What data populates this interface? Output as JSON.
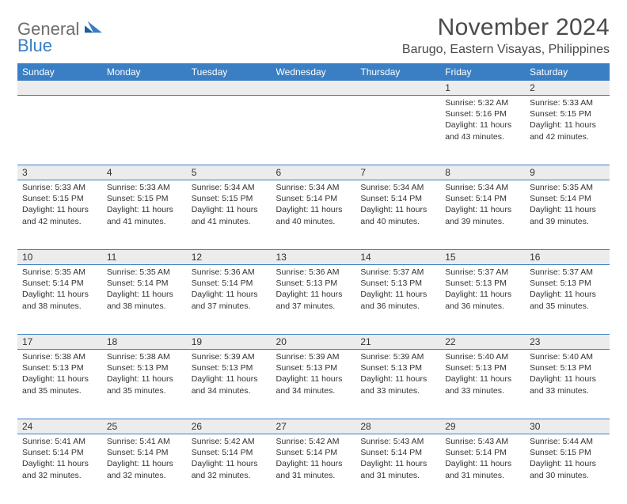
{
  "logo": {
    "general": "General",
    "blue": "Blue"
  },
  "title": "November 2024",
  "location": "Barugo, Eastern Visayas, Philippines",
  "colors": {
    "header_bg": "#3a7fc4",
    "header_text": "#ffffff",
    "daynum_bg": "#ececec",
    "border": "#3a7fc4",
    "text": "#333333",
    "logo_general": "#6d6d6d",
    "logo_blue": "#3a7fc4",
    "title_color": "#4a4a4a",
    "page_bg": "#ffffff"
  },
  "weekdays": [
    "Sunday",
    "Monday",
    "Tuesday",
    "Wednesday",
    "Thursday",
    "Friday",
    "Saturday"
  ],
  "weeks": [
    [
      null,
      null,
      null,
      null,
      null,
      {
        "n": "1",
        "sr": "5:32 AM",
        "ss": "5:16 PM",
        "dl": "11 hours and 43 minutes."
      },
      {
        "n": "2",
        "sr": "5:33 AM",
        "ss": "5:15 PM",
        "dl": "11 hours and 42 minutes."
      }
    ],
    [
      {
        "n": "3",
        "sr": "5:33 AM",
        "ss": "5:15 PM",
        "dl": "11 hours and 42 minutes."
      },
      {
        "n": "4",
        "sr": "5:33 AM",
        "ss": "5:15 PM",
        "dl": "11 hours and 41 minutes."
      },
      {
        "n": "5",
        "sr": "5:34 AM",
        "ss": "5:15 PM",
        "dl": "11 hours and 41 minutes."
      },
      {
        "n": "6",
        "sr": "5:34 AM",
        "ss": "5:14 PM",
        "dl": "11 hours and 40 minutes."
      },
      {
        "n": "7",
        "sr": "5:34 AM",
        "ss": "5:14 PM",
        "dl": "11 hours and 40 minutes."
      },
      {
        "n": "8",
        "sr": "5:34 AM",
        "ss": "5:14 PM",
        "dl": "11 hours and 39 minutes."
      },
      {
        "n": "9",
        "sr": "5:35 AM",
        "ss": "5:14 PM",
        "dl": "11 hours and 39 minutes."
      }
    ],
    [
      {
        "n": "10",
        "sr": "5:35 AM",
        "ss": "5:14 PM",
        "dl": "11 hours and 38 minutes."
      },
      {
        "n": "11",
        "sr": "5:35 AM",
        "ss": "5:14 PM",
        "dl": "11 hours and 38 minutes."
      },
      {
        "n": "12",
        "sr": "5:36 AM",
        "ss": "5:14 PM",
        "dl": "11 hours and 37 minutes."
      },
      {
        "n": "13",
        "sr": "5:36 AM",
        "ss": "5:13 PM",
        "dl": "11 hours and 37 minutes."
      },
      {
        "n": "14",
        "sr": "5:37 AM",
        "ss": "5:13 PM",
        "dl": "11 hours and 36 minutes."
      },
      {
        "n": "15",
        "sr": "5:37 AM",
        "ss": "5:13 PM",
        "dl": "11 hours and 36 minutes."
      },
      {
        "n": "16",
        "sr": "5:37 AM",
        "ss": "5:13 PM",
        "dl": "11 hours and 35 minutes."
      }
    ],
    [
      {
        "n": "17",
        "sr": "5:38 AM",
        "ss": "5:13 PM",
        "dl": "11 hours and 35 minutes."
      },
      {
        "n": "18",
        "sr": "5:38 AM",
        "ss": "5:13 PM",
        "dl": "11 hours and 35 minutes."
      },
      {
        "n": "19",
        "sr": "5:39 AM",
        "ss": "5:13 PM",
        "dl": "11 hours and 34 minutes."
      },
      {
        "n": "20",
        "sr": "5:39 AM",
        "ss": "5:13 PM",
        "dl": "11 hours and 34 minutes."
      },
      {
        "n": "21",
        "sr": "5:39 AM",
        "ss": "5:13 PM",
        "dl": "11 hours and 33 minutes."
      },
      {
        "n": "22",
        "sr": "5:40 AM",
        "ss": "5:13 PM",
        "dl": "11 hours and 33 minutes."
      },
      {
        "n": "23",
        "sr": "5:40 AM",
        "ss": "5:13 PM",
        "dl": "11 hours and 33 minutes."
      }
    ],
    [
      {
        "n": "24",
        "sr": "5:41 AM",
        "ss": "5:14 PM",
        "dl": "11 hours and 32 minutes."
      },
      {
        "n": "25",
        "sr": "5:41 AM",
        "ss": "5:14 PM",
        "dl": "11 hours and 32 minutes."
      },
      {
        "n": "26",
        "sr": "5:42 AM",
        "ss": "5:14 PM",
        "dl": "11 hours and 32 minutes."
      },
      {
        "n": "27",
        "sr": "5:42 AM",
        "ss": "5:14 PM",
        "dl": "11 hours and 31 minutes."
      },
      {
        "n": "28",
        "sr": "5:43 AM",
        "ss": "5:14 PM",
        "dl": "11 hours and 31 minutes."
      },
      {
        "n": "29",
        "sr": "5:43 AM",
        "ss": "5:14 PM",
        "dl": "11 hours and 31 minutes."
      },
      {
        "n": "30",
        "sr": "5:44 AM",
        "ss": "5:15 PM",
        "dl": "11 hours and 30 minutes."
      }
    ]
  ],
  "labels": {
    "sunrise": "Sunrise: ",
    "sunset": "Sunset: ",
    "daylight": "Daylight: "
  }
}
